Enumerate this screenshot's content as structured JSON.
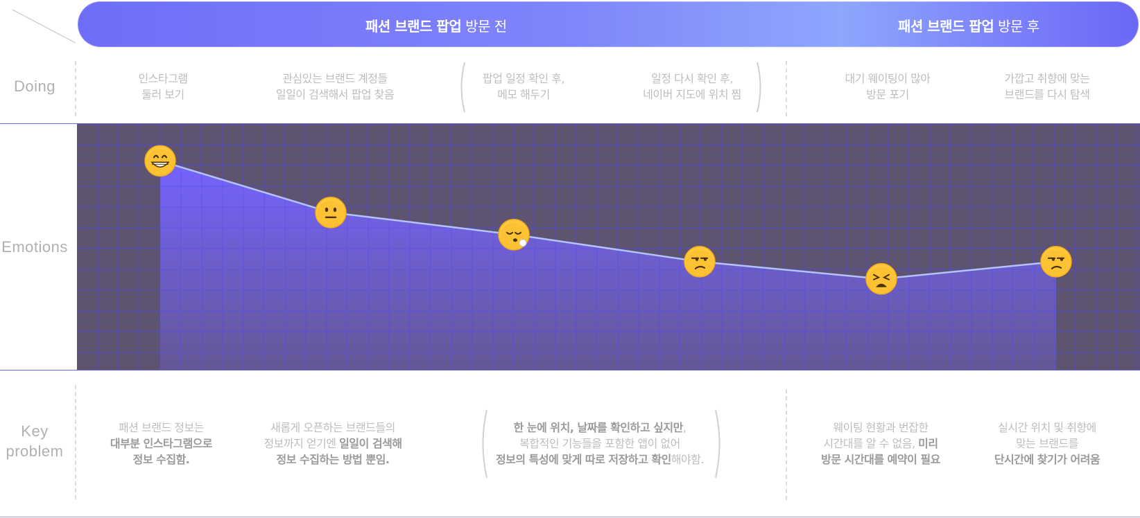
{
  "header": {
    "before": {
      "bold": "패션 브랜드 팝업",
      "rest": " 방문 전"
    },
    "after": {
      "bold": "패션 브랜드 팝업",
      "rest": " 방문 후"
    }
  },
  "rows": {
    "doing": "Doing",
    "emotions": "Emotions",
    "key_problem": "Key\nproblem"
  },
  "doing": [
    "인스타그램\n둘러 보기",
    "관심있는 브랜드 계정들\n일일이 검색해서 팝업 찾음",
    "팝업 일정 확인 후,\n메모 해두기",
    "일정 다시 확인 후,\n네이버 지도에 위치 찜",
    "대기 웨이팅이 많아\n방문 포기",
    "가깝고 취향에 맞는\n브랜드를 다시 탐색"
  ],
  "key_problems": [
    {
      "parts": [
        [
          "패션 브랜드 정보는\n",
          false
        ],
        [
          "대부분 인스타그램으로\n정보 수집함.",
          true
        ]
      ]
    },
    {
      "parts": [
        [
          "새롭게 오픈하는 브랜드들의\n정보까지 얻기엔 ",
          false
        ],
        [
          "일일이 검색해\n정보 수집하는 방법 뿐임.",
          true
        ]
      ]
    },
    {
      "parts": [
        [
          "한 눈에 위치, 날짜를 확인하고 싶지만",
          true
        ],
        [
          ",\n복합적인 기능들을 포함한 앱이 없어\n",
          false
        ],
        [
          "정보의 특성에 맞게 따로 저장하고 확인",
          true
        ],
        [
          "해야함.",
          false
        ]
      ]
    },
    {
      "parts": [
        [
          "웨이팅 현황과 번잡한\n시간대를 알 수 없음, ",
          false
        ],
        [
          "미리\n방문 시간대를 예약이 필요",
          true
        ]
      ]
    },
    {
      "parts": [
        [
          "실시간 위치 및 취향에\n맞는 브랜드를\n",
          false
        ],
        [
          "단시간에 찾기가 어려움",
          true
        ]
      ]
    }
  ],
  "chart_data": {
    "type": "line",
    "x": [
      "인스타그램 둘러 보기",
      "관심있는 브랜드 계정들 일일이 검색해서 팝업 찾음",
      "팝업 일정 확인 후, 메모 해두기",
      "일정 다시 확인 후, 네이버 지도에 위치 찜",
      "대기 웨이팅이 많아 방문 포기",
      "가깝고 취향에 맞는 브랜드를 다시 탐색"
    ],
    "values": [
      0.85,
      0.64,
      0.55,
      0.44,
      0.37,
      0.44
    ],
    "ylim": [
      0,
      1
    ],
    "emotions": [
      "grinning-face",
      "neutral-face",
      "face-exhaling",
      "unamused-face",
      "weary-face",
      "unamused-face"
    ],
    "grid": true,
    "colors": {
      "background": "#5f5470",
      "grid": "#4d4ad0",
      "area": "#7563ff",
      "line": "#b3c3ff"
    }
  }
}
